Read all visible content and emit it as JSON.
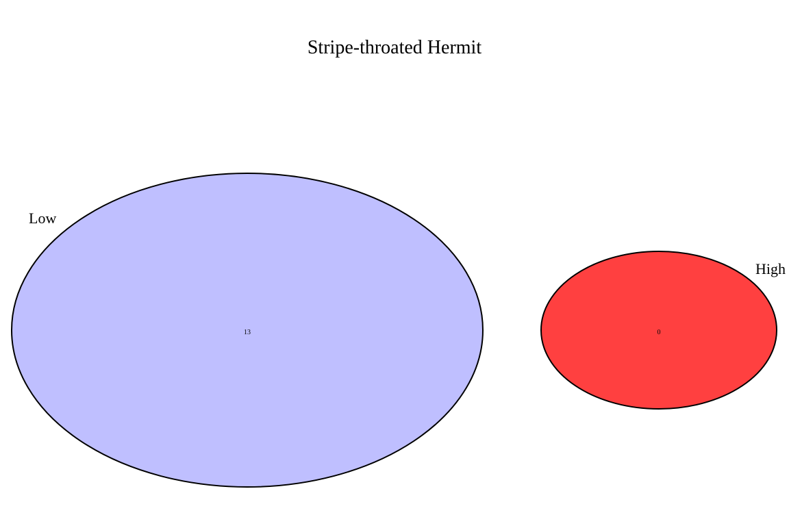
{
  "title": "Stripe-throated Hermit",
  "sets": [
    {
      "name": "Low",
      "count": "13",
      "color": "#BFBFFF"
    },
    {
      "name": "High",
      "count": "0",
      "color": "#FF4040"
    }
  ],
  "outline_color": "#000000"
}
